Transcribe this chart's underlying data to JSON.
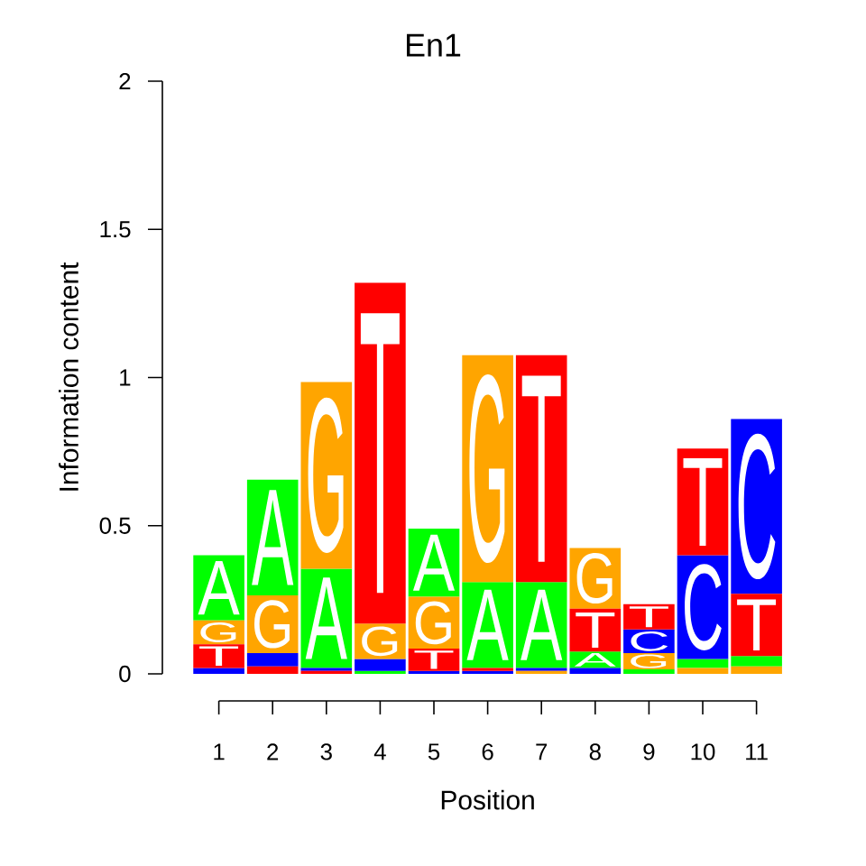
{
  "chart_data": {
    "type": "bar",
    "title": "En1",
    "xlabel": "Position",
    "ylabel": "Information content",
    "categories": [
      "1",
      "2",
      "3",
      "4",
      "5",
      "6",
      "7",
      "8",
      "9",
      "10",
      "11"
    ],
    "ylim": [
      0,
      2
    ],
    "yticks": [
      0,
      0.5,
      1,
      1.5,
      2
    ],
    "series": [
      {
        "name": "A",
        "color": "#00ff00",
        "values": [
          0.22,
          0.39,
          0.335,
          0.01,
          0.23,
          0.29,
          0.29,
          0.055,
          0.015,
          0.03,
          0.035
        ],
        "base": [
          0.18,
          0.265,
          0.02,
          0,
          0.26,
          0.02,
          0.02,
          0.02,
          0,
          0.02,
          0.025
        ]
      },
      {
        "name": "C",
        "color": "#0000ff",
        "values": [
          0.02,
          0.045,
          0.01,
          0.04,
          0.01,
          0.01,
          0.01,
          0.02,
          0.08,
          0.35,
          0.59
        ],
        "base": [
          0,
          0.025,
          0.01,
          0.01,
          0,
          0,
          0.01,
          0,
          0.07,
          0.05,
          0.27
        ]
      },
      {
        "name": "G",
        "color": "#ffa500",
        "values": [
          0.08,
          0.195,
          0.63,
          0.12,
          0.175,
          0.765,
          0.01,
          0.205,
          0.055,
          0.02,
          0.025
        ],
        "base": [
          0.1,
          0.07,
          0.355,
          0.05,
          0.085,
          0.31,
          0,
          0.22,
          0.015,
          0,
          0
        ]
      },
      {
        "name": "T",
        "color": "#ff0000",
        "values": [
          0.08,
          0.025,
          0.01,
          1.15,
          0.075,
          0.01,
          0.765,
          0.145,
          0.085,
          0.36,
          0.21
        ],
        "base": [
          0.02,
          0,
          0,
          0.17,
          0.01,
          0.01,
          0.31,
          0.075,
          0.15,
          0.4,
          0.06
        ]
      }
    ]
  }
}
